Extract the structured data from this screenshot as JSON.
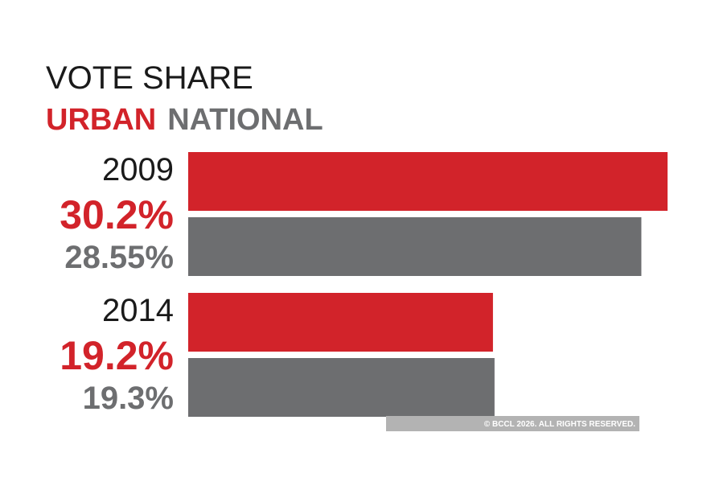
{
  "chart_data": {
    "type": "hbar",
    "title": "VOTE SHARE",
    "categories": [
      "2009",
      "2014"
    ],
    "series": [
      {
        "name": "URBAN",
        "color": "#d2232a",
        "values": [
          30.2,
          19.2
        ],
        "value_labels": [
          "30.2%",
          "19.2%"
        ]
      },
      {
        "name": "NATIONAL",
        "color": "#6d6e70",
        "values": [
          28.55,
          19.3
        ],
        "value_labels": [
          "28.55%",
          "19.3%"
        ]
      }
    ],
    "watermark": "© BCCL 2026. ALL RIGHTS RESERVED."
  }
}
